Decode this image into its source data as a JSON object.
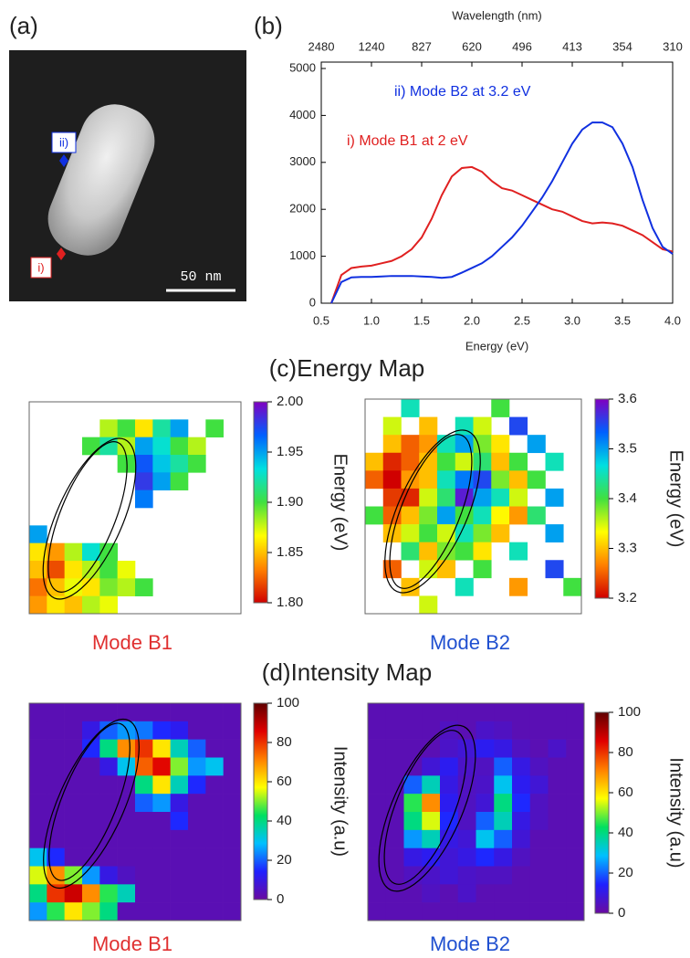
{
  "panel_a": {
    "label": "(a)",
    "markers": [
      {
        "text": "ii)",
        "color": "#1030e0"
      },
      {
        "text": "i)",
        "color": "#e02020"
      }
    ],
    "scale_bar": "50 nm"
  },
  "sections": [
    "(c)Energy Map",
    "(d)Intensity Map"
  ],
  "chart_data": [
    {
      "type": "line",
      "panel_label": "(b)",
      "x_label": "Energy (eV)",
      "x2_label": "Wavelength (nm)",
      "x": [
        0.6,
        0.7,
        0.8,
        0.9,
        1.0,
        1.1,
        1.2,
        1.3,
        1.4,
        1.5,
        1.6,
        1.7,
        1.8,
        1.9,
        2.0,
        2.1,
        2.2,
        2.3,
        2.4,
        2.5,
        2.6,
        2.7,
        2.8,
        2.9,
        3.0,
        3.1,
        3.2,
        3.3,
        3.4,
        3.5,
        3.6,
        3.7,
        3.8,
        3.9,
        4.0
      ],
      "series": [
        {
          "name": "i) Mode B1 at 2 eV",
          "color": "#e02020",
          "values": [
            0,
            600,
            750,
            780,
            800,
            850,
            900,
            1000,
            1150,
            1400,
            1800,
            2300,
            2700,
            2880,
            2900,
            2800,
            2600,
            2450,
            2400,
            2300,
            2200,
            2100,
            2000,
            1950,
            1850,
            1750,
            1700,
            1720,
            1700,
            1650,
            1550,
            1450,
            1300,
            1150,
            1100
          ]
        },
        {
          "name": "ii) Mode B2 at 3.2 eV",
          "color": "#1030e0",
          "values": [
            0,
            450,
            550,
            560,
            560,
            570,
            580,
            580,
            580,
            570,
            560,
            540,
            560,
            650,
            750,
            850,
            1000,
            1200,
            1400,
            1650,
            1950,
            2250,
            2600,
            3000,
            3400,
            3700,
            3850,
            3850,
            3750,
            3400,
            2900,
            2200,
            1600,
            1200,
            1050
          ]
        }
      ],
      "xlim": [
        0.5,
        4.0
      ],
      "xticks": [
        0.5,
        {
          "value": 1,
          "label": "1.0"
        },
        1.5,
        {
          "value": 2,
          "label": "2.0"
        },
        2.5,
        {
          "value": 3,
          "label": "3.0"
        },
        3.5,
        {
          "value": 4,
          "label": "4.0"
        }
      ],
      "x2ticks": [
        {
          "value": 0.5,
          "label": "2480"
        },
        {
          "value": 1,
          "label": "1240"
        },
        {
          "value": 1.5,
          "label": "827"
        },
        {
          "value": 2,
          "label": "620"
        },
        {
          "value": 2.5,
          "label": "496"
        },
        {
          "value": 3,
          "label": "413"
        },
        {
          "value": 3.5,
          "label": "354"
        },
        {
          "value": 4,
          "label": "310"
        }
      ],
      "ylim": [
        0,
        5000
      ],
      "yticks": [
        0,
        1000,
        2000,
        3000,
        4000,
        5000
      ]
    },
    {
      "type": "heatmap",
      "title": "Mode B1",
      "title_color": "#e03030",
      "colorbar_label": "Energy (eV)",
      "zlim": [
        1.8,
        2.0
      ],
      "zticks": [
        {
          "value": 1.8,
          "label": "1.80"
        },
        1.85,
        {
          "value": 1.9,
          "label": "1.90"
        },
        1.95,
        {
          "value": 2,
          "label": "2.00"
        }
      ],
      "colormap": [
        "#d00000",
        "#ff8000",
        "#ffff00",
        "#40e040",
        "#00e0e0",
        "#0060ff",
        "#8000c0"
      ],
      "values": [
        [
          null,
          null,
          null,
          null,
          null,
          null,
          null,
          null,
          null,
          null,
          null,
          null
        ],
        [
          null,
          null,
          null,
          null,
          1.88,
          1.9,
          1.86,
          1.92,
          1.95,
          null,
          1.9,
          null
        ],
        [
          null,
          null,
          null,
          1.9,
          1.92,
          1.88,
          1.95,
          1.93,
          1.9,
          1.88,
          null,
          null
        ],
        [
          null,
          null,
          null,
          null,
          null,
          1.9,
          1.97,
          1.94,
          1.92,
          1.9,
          null,
          null
        ],
        [
          null,
          null,
          null,
          null,
          null,
          null,
          1.98,
          1.95,
          1.9,
          null,
          null,
          null
        ],
        [
          null,
          null,
          null,
          null,
          null,
          null,
          1.96,
          null,
          null,
          null,
          null,
          null
        ],
        [
          null,
          null,
          null,
          null,
          null,
          null,
          null,
          null,
          null,
          null,
          null,
          null
        ],
        [
          1.95,
          null,
          null,
          null,
          null,
          null,
          null,
          null,
          null,
          null,
          null,
          null
        ],
        [
          1.86,
          1.84,
          1.88,
          1.93,
          1.9,
          null,
          null,
          null,
          null,
          null,
          null,
          null
        ],
        [
          1.85,
          1.82,
          1.86,
          1.88,
          1.9,
          1.87,
          null,
          null,
          null,
          null,
          null,
          null
        ],
        [
          1.83,
          1.85,
          1.87,
          1.86,
          1.89,
          1.88,
          1.9,
          null,
          null,
          null,
          null,
          null
        ],
        [
          1.84,
          1.86,
          1.85,
          1.88,
          1.87,
          null,
          null,
          null,
          null,
          null,
          null,
          null
        ]
      ]
    },
    {
      "type": "heatmap",
      "title": "Mode B2",
      "title_color": "#2050d0",
      "colorbar_label": "Energy (eV)",
      "zlim": [
        3.2,
        3.6
      ],
      "zticks": [
        3.2,
        3.3,
        3.4,
        3.5,
        3.6
      ],
      "colormap": [
        "#d00000",
        "#ff8000",
        "#ffff00",
        "#40e040",
        "#00e0e0",
        "#0060ff",
        "#8000c0"
      ],
      "values": [
        [
          null,
          null,
          3.45,
          null,
          null,
          null,
          null,
          3.4,
          null,
          null,
          null,
          null
        ],
        [
          null,
          3.35,
          null,
          3.3,
          null,
          3.45,
          3.35,
          null,
          3.55,
          null,
          null,
          null
        ],
        [
          null,
          3.3,
          3.25,
          3.28,
          3.45,
          3.5,
          3.38,
          3.32,
          null,
          3.5,
          null,
          null
        ],
        [
          3.3,
          3.22,
          3.25,
          3.3,
          3.4,
          3.35,
          3.42,
          3.3,
          3.4,
          null,
          3.45,
          null
        ],
        [
          3.25,
          3.2,
          3.28,
          3.3,
          3.45,
          3.52,
          3.55,
          3.38,
          3.3,
          3.4,
          null,
          null
        ],
        [
          null,
          3.23,
          3.22,
          3.35,
          3.42,
          3.58,
          3.5,
          3.45,
          3.35,
          null,
          3.5,
          null
        ],
        [
          3.4,
          3.25,
          3.3,
          3.38,
          3.5,
          3.4,
          3.45,
          3.33,
          3.28,
          3.42,
          null,
          null
        ],
        [
          null,
          3.3,
          3.35,
          3.4,
          3.35,
          3.45,
          3.38,
          3.3,
          null,
          null,
          3.5,
          null
        ],
        [
          null,
          null,
          3.42,
          3.3,
          3.38,
          3.4,
          3.32,
          null,
          3.45,
          null,
          null,
          null
        ],
        [
          null,
          3.25,
          null,
          3.35,
          3.3,
          null,
          3.4,
          null,
          null,
          null,
          3.55,
          null
        ],
        [
          null,
          null,
          3.3,
          null,
          null,
          3.45,
          null,
          null,
          3.28,
          null,
          null,
          3.4
        ],
        [
          null,
          null,
          null,
          3.35,
          null,
          null,
          null,
          null,
          null,
          null,
          null,
          null
        ]
      ]
    },
    {
      "type": "heatmap",
      "title": "Mode B1",
      "title_color": "#e03030",
      "colorbar_label": "Intensity (a.u)",
      "zlim": [
        0,
        100
      ],
      "zticks": [
        0,
        20,
        40,
        60,
        80,
        100
      ],
      "colormap": [
        "#6a0aa0",
        "#2020ff",
        "#00c0ff",
        "#00e060",
        "#ffff00",
        "#ff8000",
        "#e00000",
        "#600000"
      ],
      "values": [
        [
          3,
          3,
          3,
          3,
          3,
          3,
          3,
          3,
          3,
          3,
          3,
          3
        ],
        [
          3,
          3,
          3,
          10,
          20,
          25,
          22,
          15,
          12,
          3,
          3,
          3
        ],
        [
          3,
          3,
          3,
          15,
          40,
          70,
          80,
          60,
          35,
          20,
          3,
          3
        ],
        [
          3,
          3,
          3,
          3,
          10,
          30,
          75,
          85,
          50,
          25,
          30,
          3
        ],
        [
          3,
          3,
          3,
          3,
          3,
          3,
          40,
          60,
          35,
          15,
          3,
          3
        ],
        [
          3,
          3,
          3,
          3,
          3,
          3,
          20,
          25,
          10,
          3,
          3,
          3
        ],
        [
          3,
          3,
          3,
          3,
          3,
          3,
          3,
          3,
          15,
          3,
          3,
          3
        ],
        [
          3,
          3,
          3,
          3,
          3,
          3,
          3,
          3,
          3,
          3,
          3,
          3
        ],
        [
          30,
          15,
          3,
          3,
          3,
          3,
          3,
          3,
          3,
          3,
          3,
          3
        ],
        [
          55,
          70,
          50,
          25,
          10,
          5,
          3,
          3,
          3,
          3,
          3,
          3
        ],
        [
          40,
          80,
          88,
          70,
          45,
          35,
          3,
          3,
          3,
          3,
          3,
          3
        ],
        [
          25,
          45,
          60,
          50,
          40,
          3,
          3,
          3,
          3,
          3,
          3,
          3
        ]
      ]
    },
    {
      "type": "heatmap",
      "title": "Mode B2",
      "title_color": "#2050d0",
      "colorbar_label": "Intensity (a.u)",
      "zlim": [
        0,
        100
      ],
      "zticks": [
        0,
        20,
        40,
        60,
        80,
        100
      ],
      "colormap": [
        "#6a0aa0",
        "#2020ff",
        "#00c0ff",
        "#00e060",
        "#ffff00",
        "#ff8000",
        "#e00000",
        "#600000"
      ],
      "values": [
        [
          3,
          3,
          3,
          3,
          3,
          3,
          3,
          3,
          3,
          3,
          3,
          3
        ],
        [
          3,
          3,
          3,
          3,
          5,
          3,
          6,
          5,
          3,
          3,
          3,
          3
        ],
        [
          3,
          3,
          3,
          3,
          6,
          8,
          12,
          10,
          5,
          3,
          6,
          3
        ],
        [
          3,
          3,
          3,
          8,
          12,
          6,
          5,
          20,
          10,
          5,
          3,
          3
        ],
        [
          3,
          3,
          20,
          35,
          10,
          5,
          6,
          30,
          12,
          8,
          3,
          3
        ],
        [
          3,
          3,
          45,
          70,
          12,
          5,
          8,
          40,
          15,
          5,
          3,
          3
        ],
        [
          3,
          3,
          40,
          55,
          15,
          5,
          20,
          35,
          10,
          5,
          3,
          3
        ],
        [
          3,
          3,
          25,
          35,
          10,
          8,
          30,
          20,
          8,
          3,
          3,
          3
        ],
        [
          3,
          3,
          10,
          12,
          8,
          10,
          15,
          10,
          5,
          3,
          3,
          3
        ],
        [
          3,
          3,
          5,
          6,
          8,
          6,
          5,
          5,
          3,
          3,
          3,
          3
        ],
        [
          3,
          3,
          3,
          5,
          3,
          6,
          3,
          3,
          3,
          3,
          3,
          3
        ],
        [
          3,
          3,
          3,
          3,
          3,
          3,
          3,
          3,
          3,
          3,
          3,
          3
        ]
      ]
    }
  ]
}
